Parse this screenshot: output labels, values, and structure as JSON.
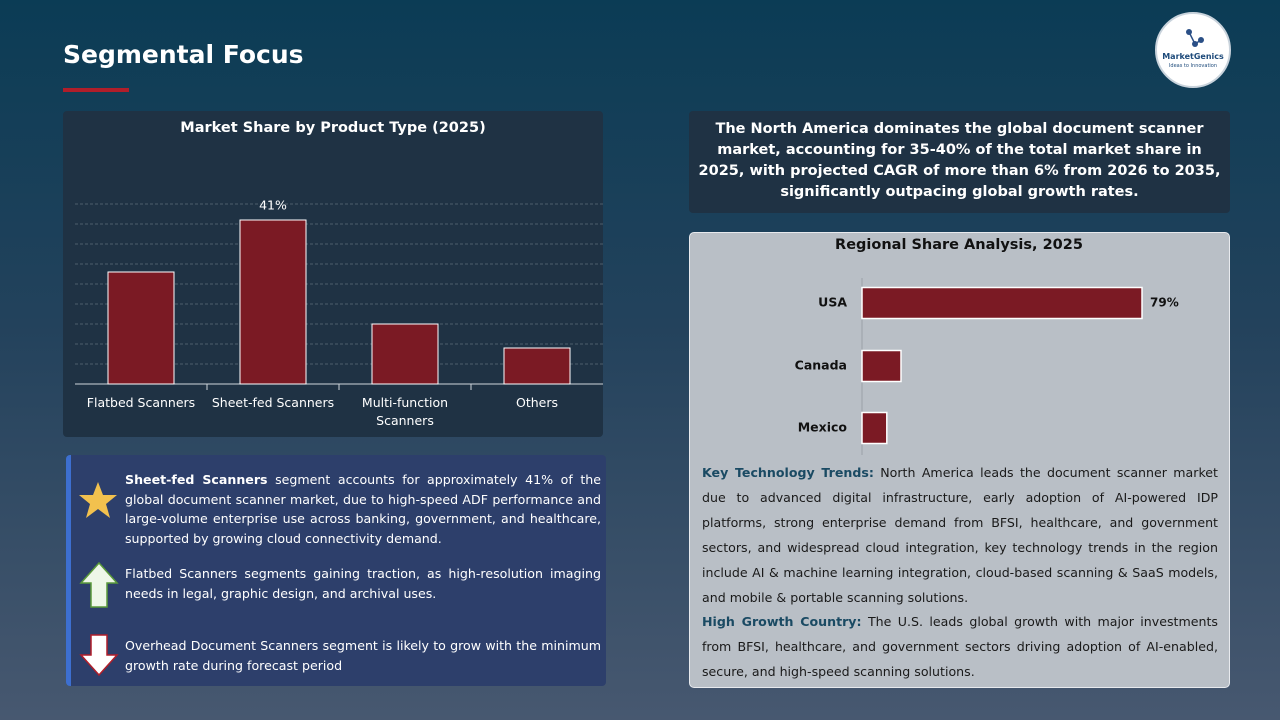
{
  "title": "Segmental Focus",
  "logo": {
    "name": "MarketGenics",
    "tagline": "Ideas to Innovation"
  },
  "chart_data": [
    {
      "type": "bar",
      "title": "Market Share by Product Type (2025)",
      "categories": [
        "Flatbed Scanners",
        "Sheet-fed Scanners",
        "Multi-function Scanners",
        "Others"
      ],
      "values": [
        28,
        41,
        15,
        9
      ],
      "value_labels": [
        null,
        "41%",
        null,
        null
      ],
      "color": "#7b1a24",
      "ylim": [
        0,
        45
      ],
      "yticks": [
        0,
        5,
        10,
        15,
        20,
        25,
        30,
        35,
        40,
        45
      ],
      "grid": true
    },
    {
      "type": "hbar",
      "title": "Regional Share Analysis, 2025",
      "categories": [
        "USA",
        "Canada",
        "Mexico"
      ],
      "values": [
        79,
        11,
        7
      ],
      "value_labels": [
        "79%",
        null,
        null
      ],
      "color": "#7b1a24",
      "xlim": [
        0,
        90
      ]
    }
  ],
  "summary": "The North America dominates the global document scanner market, accounting for 35-40% of the total market share in 2025, with projected CAGR of more than 6% from 2026 to 2035, significantly outpacing global growth rates.",
  "bullets": [
    {
      "bold": "Sheet-fed Scanners",
      "text": " segment accounts for approximately 41% of the global document scanner market, due to high-speed ADF performance and large-volume enterprise use across banking, government, and healthcare, supported by growing cloud connectivity demand."
    },
    {
      "text": "Flatbed Scanners segments gaining traction, as high-resolution imaging needs in legal, graphic design, and archival uses."
    },
    {
      "text": "Overhead Document Scanners segment is likely to grow with the minimum growth rate during forecast period"
    }
  ],
  "insights": [
    {
      "heading": "Key Technology Trends:",
      "text": " North America leads the document scanner market due to advanced digital infrastructure, early adoption of AI-powered IDP platforms, strong enterprise demand from BFSI, healthcare, and government sectors, and widespread cloud integration, key technology trends in the region include AI & machine learning integration, cloud-based scanning & SaaS models, and mobile & portable scanning solutions."
    },
    {
      "heading": "High Growth Country:",
      "text": " The U.S. leads global growth with major investments from BFSI, healthcare, and government sectors driving adoption of AI-enabled, secure, and high-speed scanning solutions."
    }
  ]
}
